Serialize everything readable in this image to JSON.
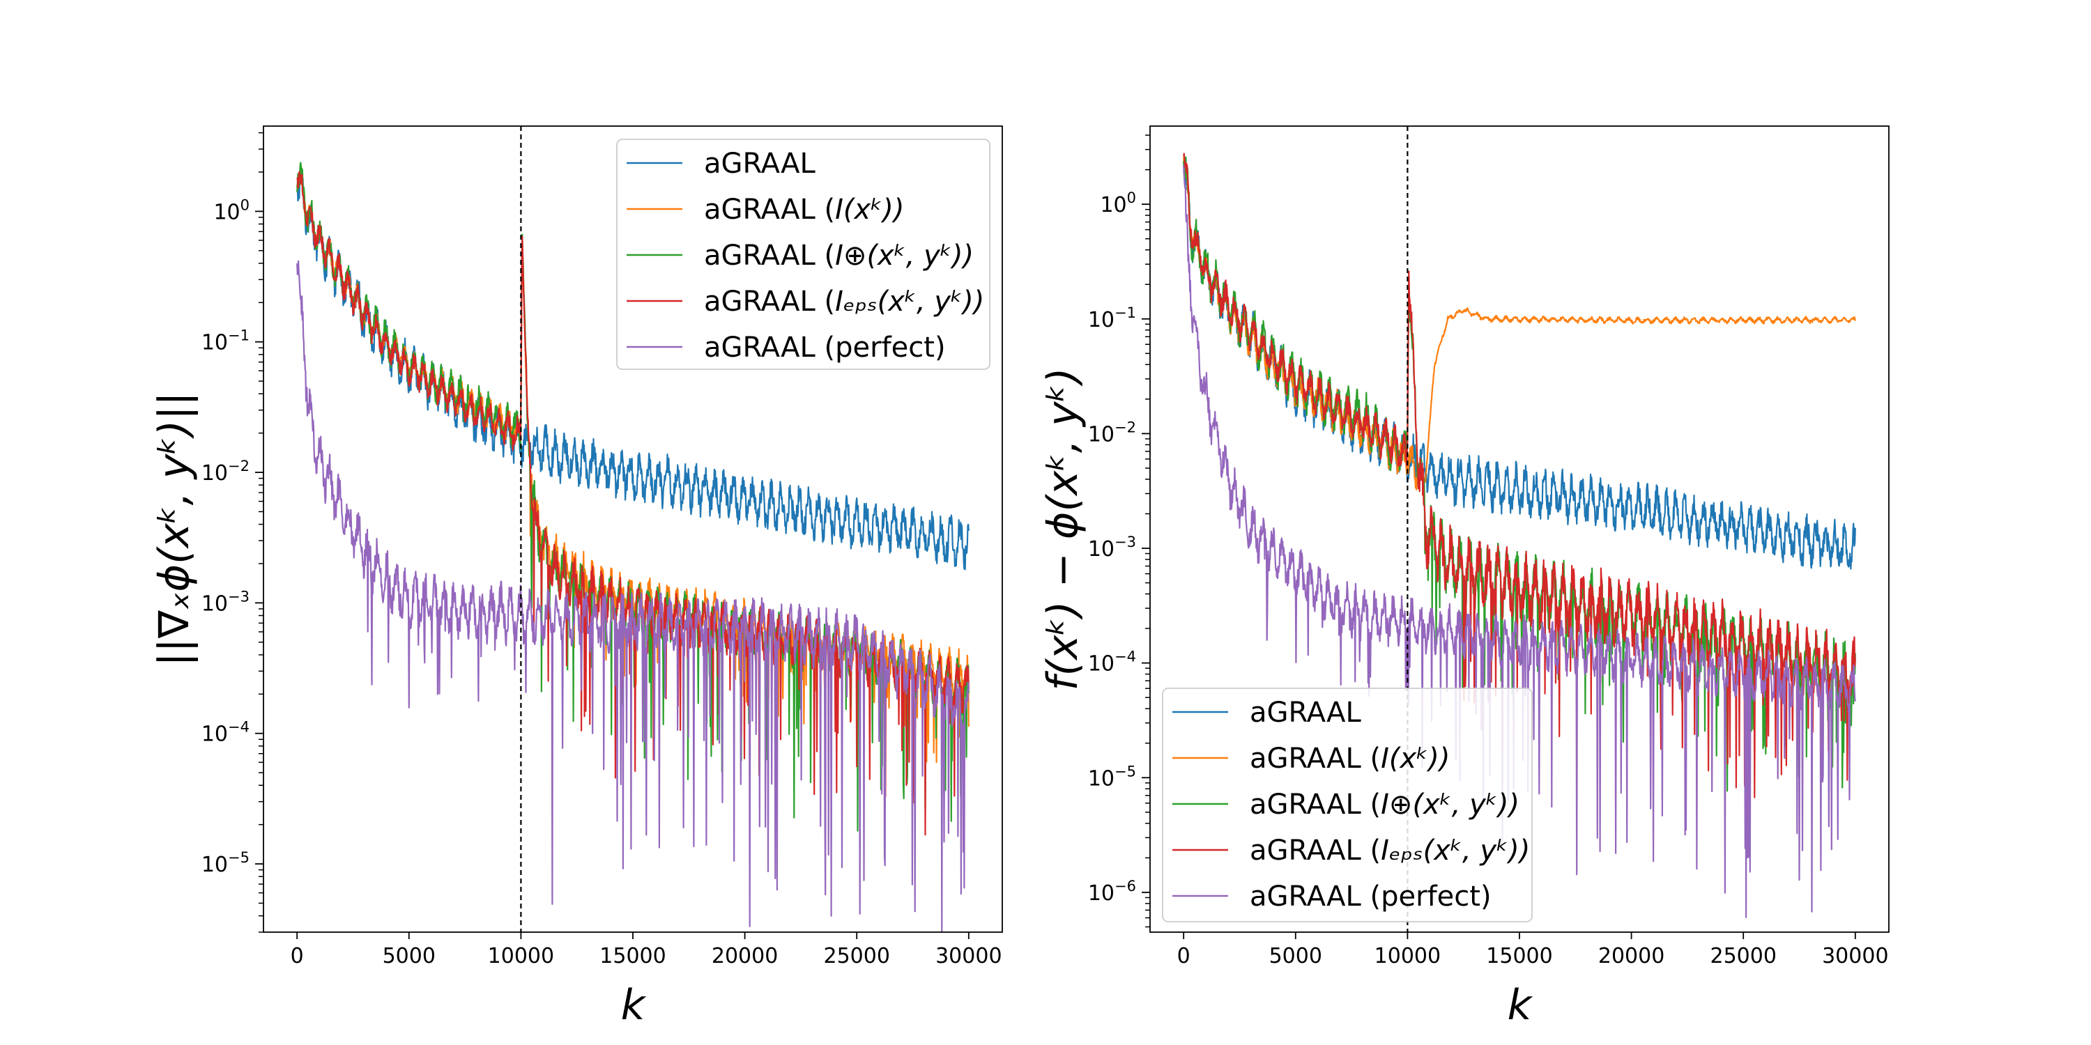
{
  "figure": {
    "background": "#ffffff"
  },
  "chart_data": [
    {
      "type": "line",
      "yscale": "log",
      "title": "",
      "xlabel": "k",
      "ylabel": "||∇ₓϕ(xᵏ, yᵏ)||",
      "xlim": [
        -1500,
        31500
      ],
      "ylim": [
        3e-06,
        4.5
      ],
      "xticks": [
        0,
        5000,
        10000,
        15000,
        20000,
        25000,
        30000
      ],
      "xtick_labels": [
        "0",
        "5000",
        "10000",
        "15000",
        "20000",
        "25000",
        "30000"
      ],
      "yticks": [
        1,
        0.1,
        0.01,
        0.001,
        0.0001,
        1e-05
      ],
      "ytick_labels": [
        {
          "base": "10",
          "exp": "0"
        },
        {
          "base": "10",
          "exp": "−1"
        },
        {
          "base": "10",
          "exp": "−2"
        },
        {
          "base": "10",
          "exp": "−3"
        },
        {
          "base": "10",
          "exp": "−4"
        },
        {
          "base": "10",
          "exp": "−5"
        }
      ],
      "vline": {
        "x": 10000,
        "style": "dashed"
      },
      "legend": "top-right",
      "series": [
        {
          "name": "aGRAAL",
          "label": {
            "main": "aGRAAL",
            "math": ""
          },
          "color": "#1f77b4",
          "points": [
            [
              0,
              1.8
            ],
            [
              500,
              0.9
            ],
            [
              1000,
              0.55
            ],
            [
              2000,
              0.3
            ],
            [
              3000,
              0.16
            ],
            [
              4000,
              0.09
            ],
            [
              5000,
              0.062
            ],
            [
              6000,
              0.046
            ],
            [
              7000,
              0.035
            ],
            [
              8000,
              0.026
            ],
            [
              9000,
              0.021
            ],
            [
              10000,
              0.017
            ],
            [
              12000,
              0.013
            ],
            [
              15000,
              0.0095
            ],
            [
              18000,
              0.0075
            ],
            [
              20000,
              0.0062
            ],
            [
              22000,
              0.0052
            ],
            [
              25000,
              0.0041
            ],
            [
              28000,
              0.0033
            ],
            [
              30000,
              0.0028
            ]
          ],
          "noise": 0.22,
          "noise_after": 0.22,
          "dips_after": 0
        },
        {
          "name": "aGRAAL (I(x^k))",
          "label": {
            "main": "aGRAAL (",
            "math": "I(xᵏ))"
          },
          "color": "#ff7f0e",
          "points": [
            [
              0,
              2.0
            ],
            [
              500,
              0.95
            ],
            [
              1000,
              0.6
            ],
            [
              2000,
              0.32
            ],
            [
              3000,
              0.17
            ],
            [
              4000,
              0.1
            ],
            [
              5000,
              0.068
            ],
            [
              6000,
              0.05
            ],
            [
              7000,
              0.04
            ],
            [
              8000,
              0.031
            ],
            [
              9000,
              0.025
            ],
            [
              9990,
              0.02
            ],
            [
              10050,
              0.85
            ],
            [
              10300,
              0.02
            ],
            [
              10700,
              0.004
            ],
            [
              11500,
              0.0022
            ],
            [
              13000,
              0.0015
            ],
            [
              15000,
              0.0011
            ],
            [
              20000,
              0.0007
            ],
            [
              25000,
              0.00045
            ],
            [
              30000,
              0.00027
            ]
          ],
          "noise": 0.15,
          "noise_after": 0.2,
          "dips_after": 0.5
        },
        {
          "name": "aGRAAL (I_oplus(x^k,y^k))",
          "label": {
            "main": "aGRAAL (",
            "math": "I⊕(xᵏ, yᵏ))"
          },
          "color": "#2ca02c",
          "points": [
            [
              0,
              2.1
            ],
            [
              500,
              0.95
            ],
            [
              1000,
              0.6
            ],
            [
              2000,
              0.32
            ],
            [
              3000,
              0.17
            ],
            [
              4000,
              0.1
            ],
            [
              5000,
              0.066
            ],
            [
              6000,
              0.05
            ],
            [
              7000,
              0.04
            ],
            [
              8000,
              0.032
            ],
            [
              9000,
              0.026
            ],
            [
              9990,
              0.021
            ],
            [
              10050,
              0.75
            ],
            [
              10300,
              0.02
            ],
            [
              10700,
              0.0035
            ],
            [
              11500,
              0.0018
            ],
            [
              13000,
              0.0012
            ],
            [
              15000,
              0.0009
            ],
            [
              20000,
              0.0006
            ],
            [
              25000,
              0.0004
            ],
            [
              30000,
              0.00022
            ]
          ],
          "noise": 0.18,
          "noise_after": 0.22,
          "dips_after": 0.9
        },
        {
          "name": "aGRAAL (I_eps(x^k,y^k))",
          "label": {
            "main": "aGRAAL (",
            "math": "Iₑₚₛ(xᵏ, yᵏ))"
          },
          "color": "#d62728",
          "points": [
            [
              0,
              2.0
            ],
            [
              500,
              0.95
            ],
            [
              1000,
              0.6
            ],
            [
              2000,
              0.31
            ],
            [
              3000,
              0.165
            ],
            [
              4000,
              0.095
            ],
            [
              5000,
              0.064
            ],
            [
              6000,
              0.048
            ],
            [
              7000,
              0.037
            ],
            [
              8000,
              0.029
            ],
            [
              9000,
              0.023
            ],
            [
              9990,
              0.019
            ],
            [
              10050,
              0.9
            ],
            [
              10300,
              0.02
            ],
            [
              10700,
              0.0035
            ],
            [
              11500,
              0.0018
            ],
            [
              13000,
              0.0012
            ],
            [
              15000,
              0.0009
            ],
            [
              20000,
              0.0006
            ],
            [
              25000,
              0.0004
            ],
            [
              30000,
              0.00022
            ]
          ],
          "noise": 0.15,
          "noise_after": 0.22,
          "dips_after": 0.9
        },
        {
          "name": "aGRAAL (perfect)",
          "label": {
            "main": "aGRAAL (perfect)",
            "math": ""
          },
          "color": "#9467bd",
          "points": [
            [
              0,
              0.6
            ],
            [
              200,
              0.15
            ],
            [
              500,
              0.035
            ],
            [
              1000,
              0.012
            ],
            [
              2000,
              0.005
            ],
            [
              3000,
              0.0025
            ],
            [
              4000,
              0.0015
            ],
            [
              5000,
              0.0011
            ],
            [
              7000,
              0.0009
            ],
            [
              10000,
              0.0008
            ],
            [
              15000,
              0.0007
            ],
            [
              20000,
              0.00065
            ],
            [
              25000,
              0.0005
            ],
            [
              30000,
              0.00015
            ]
          ],
          "noise": 0.25,
          "noise_after": 0.25,
          "dips_after": 1.6
        }
      ]
    },
    {
      "type": "line",
      "yscale": "log",
      "title": "",
      "xlabel": "k",
      "ylabel": "f(xᵏ) − ϕ(xᵏ, yᵏ)",
      "xlim": [
        -1500,
        31500
      ],
      "ylim": [
        4.5e-07,
        4.8
      ],
      "xticks": [
        0,
        5000,
        10000,
        15000,
        20000,
        25000,
        30000
      ],
      "xtick_labels": [
        "0",
        "5000",
        "10000",
        "15000",
        "20000",
        "25000",
        "30000"
      ],
      "yticks": [
        1,
        0.1,
        0.01,
        0.001,
        0.0001,
        1e-05,
        1e-06
      ],
      "ytick_labels": [
        {
          "base": "10",
          "exp": "0"
        },
        {
          "base": "10",
          "exp": "−1"
        },
        {
          "base": "10",
          "exp": "−2"
        },
        {
          "base": "10",
          "exp": "−3"
        },
        {
          "base": "10",
          "exp": "−4"
        },
        {
          "base": "10",
          "exp": "−5"
        },
        {
          "base": "10",
          "exp": "−6"
        }
      ],
      "vline": {
        "x": 10000,
        "style": "dashed"
      },
      "legend": "bottom-left",
      "series": [
        {
          "name": "aGRAAL",
          "label": {
            "main": "aGRAAL",
            "math": ""
          },
          "color": "#1f77b4",
          "points": [
            [
              0,
              3.0
            ],
            [
              300,
              0.6
            ],
            [
              1000,
              0.25
            ],
            [
              2000,
              0.12
            ],
            [
              3000,
              0.07
            ],
            [
              4000,
              0.04
            ],
            [
              5000,
              0.025
            ],
            [
              7000,
              0.014
            ],
            [
              9000,
              0.008
            ],
            [
              10000,
              0.006
            ],
            [
              12000,
              0.004
            ],
            [
              15000,
              0.0032
            ],
            [
              20000,
              0.0023
            ],
            [
              25000,
              0.0015
            ],
            [
              30000,
              0.00095
            ]
          ],
          "noise": 0.25,
          "noise_after": 0.25,
          "dips_after": 0
        },
        {
          "name": "aGRAAL (I(x^k))",
          "label": {
            "main": "aGRAAL (",
            "math": "I(xᵏ))"
          },
          "color": "#ff7f0e",
          "points": [
            [
              0,
              2.8
            ],
            [
              300,
              0.6
            ],
            [
              1000,
              0.25
            ],
            [
              2000,
              0.12
            ],
            [
              3000,
              0.07
            ],
            [
              4000,
              0.04
            ],
            [
              5000,
              0.026
            ],
            [
              7000,
              0.015
            ],
            [
              9000,
              0.008
            ],
            [
              10000,
              0.006
            ],
            [
              10800,
              0.004
            ],
            [
              11200,
              0.04
            ],
            [
              11800,
              0.1
            ],
            [
              12500,
              0.12
            ],
            [
              13500,
              0.1
            ],
            [
              20000,
              0.097
            ],
            [
              30000,
              0.098
            ]
          ],
          "noise": 0.2,
          "noise_after": 0.03,
          "dips_after": 0
        },
        {
          "name": "aGRAAL (I_oplus(x^k,y^k))",
          "label": {
            "main": "aGRAAL (",
            "math": "I⊕(xᵏ, yᵏ))"
          },
          "color": "#2ca02c",
          "points": [
            [
              0,
              3.2
            ],
            [
              300,
              0.6
            ],
            [
              1000,
              0.26
            ],
            [
              2000,
              0.13
            ],
            [
              3000,
              0.075
            ],
            [
              4000,
              0.045
            ],
            [
              5000,
              0.028
            ],
            [
              7000,
              0.016
            ],
            [
              8000,
              0.014
            ],
            [
              9000,
              0.009
            ],
            [
              9990,
              0.0065
            ],
            [
              10050,
              0.25
            ],
            [
              10400,
              0.01
            ],
            [
              10800,
              0.0015
            ],
            [
              12000,
              0.0007
            ],
            [
              15000,
              0.00045
            ],
            [
              20000,
              0.00025
            ],
            [
              25000,
              0.00014
            ],
            [
              30000,
              7e-05
            ]
          ],
          "noise": 0.25,
          "noise_after": 0.35,
          "dips_after": 0.8
        },
        {
          "name": "aGRAAL (I_eps(x^k,y^k))",
          "label": {
            "main": "aGRAAL (",
            "math": "Iₑₚₛ(xᵏ, yᵏ))"
          },
          "color": "#d62728",
          "points": [
            [
              0,
              3.8
            ],
            [
              300,
              0.6
            ],
            [
              1000,
              0.26
            ],
            [
              2000,
              0.13
            ],
            [
              3000,
              0.075
            ],
            [
              4000,
              0.045
            ],
            [
              5000,
              0.028
            ],
            [
              7000,
              0.016
            ],
            [
              9000,
              0.009
            ],
            [
              9990,
              0.0065
            ],
            [
              10050,
              0.3
            ],
            [
              10400,
              0.01
            ],
            [
              10800,
              0.0015
            ],
            [
              12000,
              0.0007
            ],
            [
              15000,
              0.00045
            ],
            [
              20000,
              0.00026
            ],
            [
              25000,
              0.00015
            ],
            [
              30000,
              8e-05
            ]
          ],
          "noise": 0.2,
          "noise_after": 0.35,
          "dips_after": 0.9
        },
        {
          "name": "aGRAAL (perfect)",
          "label": {
            "main": "aGRAAL (perfect)",
            "math": ""
          },
          "color": "#9467bd",
          "points": [
            [
              0,
              2.5
            ],
            [
              200,
              0.3
            ],
            [
              500,
              0.08
            ],
            [
              1000,
              0.02
            ],
            [
              2000,
              0.004
            ],
            [
              3000,
              0.0015
            ],
            [
              5000,
              0.0006
            ],
            [
              7000,
              0.0003
            ],
            [
              10000,
              0.00022
            ],
            [
              15000,
              0.00015
            ],
            [
              20000,
              0.00011
            ],
            [
              25000,
              8e-05
            ],
            [
              30000,
              6e-05
            ]
          ],
          "noise": 0.25,
          "noise_after": 0.25,
          "dips_after": 1.5
        }
      ]
    }
  ]
}
